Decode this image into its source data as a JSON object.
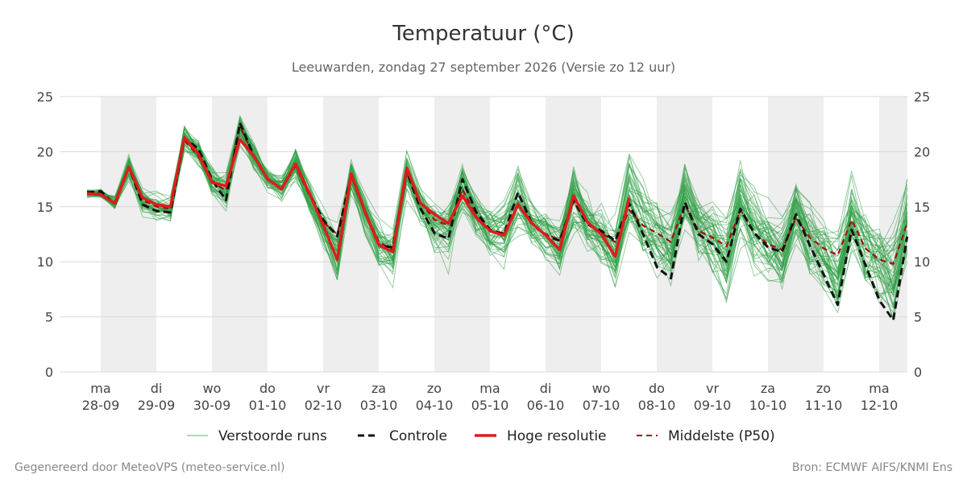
{
  "chart_data": {
    "type": "line",
    "title": "Temperatuur (°C)",
    "subtitle": "Leeuwarden, zondag 27 september 2026 (Versie zo 12 uur)",
    "x_unit": "time steps of 6 hours starting 28-09 00:00 (approx.)",
    "ylim": [
      0,
      25
    ],
    "yticks": [
      0,
      5,
      10,
      15,
      20,
      25
    ],
    "grid": true,
    "legend_position": "bottom",
    "x_ticks": [
      {
        "day": "ma",
        "date": "28-09"
      },
      {
        "day": "di",
        "date": "29-09"
      },
      {
        "day": "wo",
        "date": "30-09"
      },
      {
        "day": "do",
        "date": "01-10"
      },
      {
        "day": "vr",
        "date": "02-10"
      },
      {
        "day": "za",
        "date": "03-10"
      },
      {
        "day": "zo",
        "date": "04-10"
      },
      {
        "day": "ma",
        "date": "05-10"
      },
      {
        "day": "di",
        "date": "06-10"
      },
      {
        "day": "wo",
        "date": "07-10"
      },
      {
        "day": "do",
        "date": "08-10"
      },
      {
        "day": "vr",
        "date": "09-10"
      },
      {
        "day": "za",
        "date": "10-10"
      },
      {
        "day": "zo",
        "date": "11-10"
      },
      {
        "day": "ma",
        "date": "12-10"
      }
    ],
    "shaded_days": [
      "28-09",
      "30-09",
      "02-10",
      "04-10",
      "06-10",
      "08-10",
      "10-10",
      "12-10"
    ],
    "series": [
      {
        "name": "Hoge resolutie",
        "key": "hires",
        "values": [
          16.2,
          16.1,
          15.3,
          18.6,
          15.8,
          15.2,
          15.0,
          21.3,
          19.8,
          17.2,
          16.9,
          21.1,
          19.6,
          17.5,
          16.6,
          18.9,
          16.2,
          13.3,
          10.2,
          18.0,
          14.5,
          11.5,
          10.9,
          18.5,
          15.3,
          14.3,
          13.5,
          16.0,
          14.0,
          12.8,
          12.4,
          15.2,
          13.5,
          12.4,
          11.1,
          16.0,
          13.6,
          12.5,
          10.5,
          15.8
        ]
      },
      {
        "name": "Controle",
        "key": "control",
        "values": [
          16.3,
          16.4,
          15.2,
          18.6,
          15.2,
          14.6,
          14.5,
          21.2,
          20.3,
          17.4,
          15.6,
          22.6,
          19.6,
          17.5,
          16.6,
          18.9,
          16.2,
          13.8,
          12.3,
          17.9,
          14.5,
          11.5,
          11.3,
          18.2,
          14.8,
          12.6,
          12.1,
          17.5,
          14.5,
          12.9,
          12.5,
          16.3,
          13.5,
          12.4,
          11.9,
          15.6,
          13.4,
          12.8,
          11.9,
          15.3,
          12.5,
          9.5,
          8.5,
          15.4,
          12.5,
          11.6,
          10.0,
          14.8,
          12.6,
          11.3,
          10.9,
          14.3,
          11.5,
          8.8,
          6.1,
          12.9,
          9.7,
          6.5,
          4.7,
          12.3
        ]
      },
      {
        "name": "Middelste (P50)",
        "key": "p50",
        "values": [
          16.2,
          16.2,
          15.3,
          18.5,
          15.6,
          15.0,
          14.8,
          21.0,
          19.6,
          17.2,
          16.5,
          22.3,
          19.6,
          17.5,
          16.6,
          18.7,
          16.0,
          13.6,
          12.5,
          17.9,
          14.6,
          11.8,
          11.1,
          18.2,
          15.4,
          13.8,
          13.3,
          16.6,
          14.1,
          12.8,
          12.6,
          15.3,
          13.5,
          12.5,
          12.0,
          15.6,
          13.6,
          12.6,
          11.8,
          14.7,
          13.3,
          12.6,
          11.8,
          15.2,
          12.8,
          12.2,
          11.4,
          14.7,
          12.6,
          11.6,
          11.1,
          14.0,
          12.2,
          11.2,
          10.6,
          13.8,
          11.2,
          10.2,
          9.8,
          13.5
        ]
      }
    ],
    "ensemble": {
      "name": "Verstoorde runs",
      "members": 50,
      "mean_values": [
        16.2,
        16.2,
        15.3,
        18.6,
        15.5,
        14.9,
        14.6,
        21.2,
        19.8,
        17.3,
        16.4,
        22.2,
        19.7,
        17.5,
        16.7,
        18.9,
        16.0,
        13.4,
        11.0,
        17.9,
        14.5,
        11.6,
        10.8,
        18.2,
        15.1,
        13.2,
        12.6,
        16.8,
        14.2,
        12.8,
        12.5,
        15.6,
        13.5,
        12.4,
        11.2,
        16.0,
        13.7,
        12.4,
        10.9,
        16.2,
        13.6,
        12.3,
        10.9,
        15.8,
        13.1,
        11.9,
        10.2,
        15.4,
        12.8,
        11.6,
        10.2,
        15.0,
        12.3,
        10.8,
        9.2,
        14.2,
        11.3,
        9.8,
        8.6,
        13.6
      ],
      "spread_values": [
        0.4,
        0.4,
        0.6,
        0.9,
        0.9,
        1.0,
        1.0,
        1.2,
        1.2,
        1.1,
        1.4,
        1.2,
        1.2,
        0.8,
        1.0,
        1.4,
        1.3,
        1.6,
        2.2,
        1.4,
        1.4,
        1.6,
        1.8,
        1.5,
        1.6,
        2.0,
        2.3,
        2.0,
        1.7,
        1.9,
        2.2,
        2.6,
        1.8,
        2.0,
        2.4,
        2.8,
        2.3,
        2.4,
        2.6,
        2.6,
        2.5,
        2.6,
        2.8,
        2.6,
        2.5,
        2.6,
        2.8,
        2.6,
        2.8,
        2.8,
        2.9,
        2.8,
        2.9,
        3.0,
        3.1,
        3.0,
        3.0,
        3.1,
        3.2,
        3.3
      ]
    }
  },
  "legend": [
    {
      "key": "ensemble",
      "label": "Verstoorde runs"
    },
    {
      "key": "control",
      "label": "Controle"
    },
    {
      "key": "hires",
      "label": "Hoge resolutie"
    },
    {
      "key": "p50",
      "label": "Middelste (P50)"
    }
  ],
  "credits": {
    "left": "Gegenereerd door MeteoVPS (meteo-service.nl)",
    "right": "Bron: ECMWF AIFS/KNMI Ens"
  },
  "colors": {
    "ensemble": "#2e9e44",
    "control": "#111111",
    "hires": "#e01b1b",
    "p50": "#a01010",
    "shade": "#eeeeee",
    "grid": "#d9d9d9"
  }
}
